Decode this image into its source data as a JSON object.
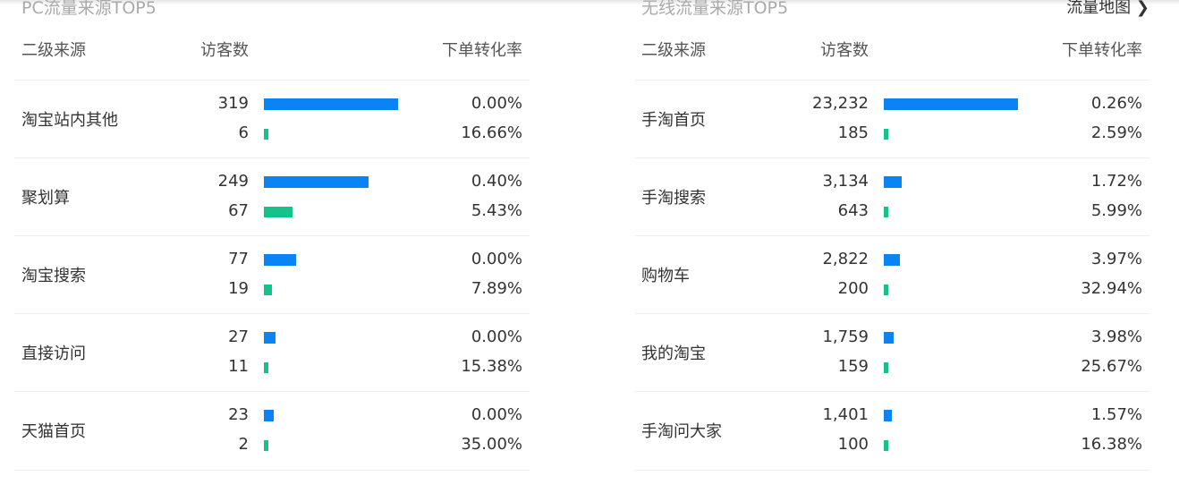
{
  "colors": {
    "visitor_bar": "#0a84f5",
    "order_bar": "#14c28a"
  },
  "panels": [
    {
      "title": "PC流量来源TOP5",
      "link": "",
      "headers": [
        "二级来源",
        "访客数",
        "下单转化率"
      ],
      "rows": [
        {
          "source": "淘宝站内其他",
          "visitors": "319",
          "orders": "6",
          "visitor_rate": "0.00%",
          "order_rate": "16.66%"
        },
        {
          "source": "聚划算",
          "visitors": "249",
          "orders": "67",
          "visitor_rate": "0.40%",
          "order_rate": "5.43%"
        },
        {
          "source": "淘宝搜索",
          "visitors": "77",
          "orders": "19",
          "visitor_rate": "0.00%",
          "order_rate": "7.89%"
        },
        {
          "source": "直接访问",
          "visitors": "27",
          "orders": "11",
          "visitor_rate": "0.00%",
          "order_rate": "15.38%"
        },
        {
          "source": "天猫首页",
          "visitors": "23",
          "orders": "2",
          "visitor_rate": "0.00%",
          "order_rate": "35.00%"
        }
      ]
    },
    {
      "title": "无线流量来源TOP5",
      "link": "流量地图 ❯",
      "headers": [
        "二级来源",
        "访客数",
        "下单转化率"
      ],
      "rows": [
        {
          "source": "手淘首页",
          "visitors": "23,232",
          "orders": "185",
          "visitor_rate": "0.26%",
          "order_rate": "2.59%"
        },
        {
          "source": "手淘搜索",
          "visitors": "3,134",
          "orders": "643",
          "visitor_rate": "1.72%",
          "order_rate": "5.99%"
        },
        {
          "source": "购物车",
          "visitors": "2,822",
          "orders": "200",
          "visitor_rate": "3.97%",
          "order_rate": "32.94%"
        },
        {
          "source": "我的淘宝",
          "visitors": "1,759",
          "orders": "159",
          "visitor_rate": "3.98%",
          "order_rate": "25.67%"
        },
        {
          "source": "手淘问大家",
          "visitors": "1,401",
          "orders": "100",
          "visitor_rate": "1.57%",
          "order_rate": "16.38%"
        }
      ]
    }
  ]
}
